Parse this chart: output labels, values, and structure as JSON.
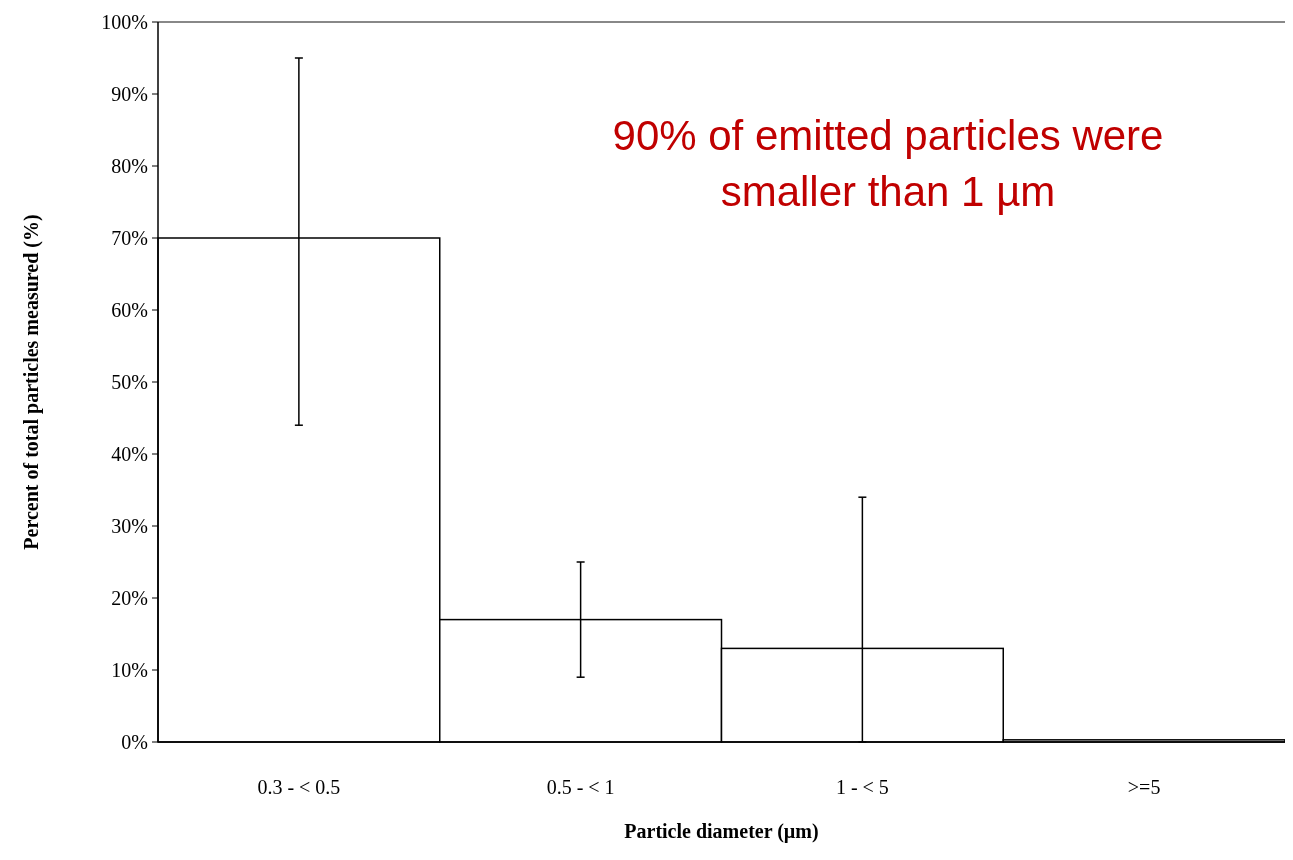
{
  "chart_data": {
    "type": "bar",
    "xlabel": "Particle diameter (µm)",
    "ylabel": "Percent of total particles measured (%)",
    "categories": [
      "0.3 - < 0.5",
      "0.5 - < 1",
      "1 - < 5",
      ">=5"
    ],
    "values": [
      70,
      17,
      13,
      0.3
    ],
    "errors": [
      [
        44,
        95
      ],
      [
        9,
        25
      ],
      [
        0,
        34
      ],
      null
    ],
    "color": "#ffffff",
    "ylim": [
      0,
      100
    ],
    "yticks": [
      {
        "value": 0,
        "label": "0%"
      },
      {
        "value": 10,
        "label": "10%"
      },
      {
        "value": 20,
        "label": "20%"
      },
      {
        "value": 30,
        "label": "30%"
      },
      {
        "value": 40,
        "label": "40%"
      },
      {
        "value": 50,
        "label": "50%"
      },
      {
        "value": 60,
        "label": "60%"
      },
      {
        "value": 70,
        "label": "70%"
      },
      {
        "value": 80,
        "label": "80%"
      },
      {
        "value": 90,
        "label": "90%"
      },
      {
        "value": 100,
        "label": "100%"
      }
    ],
    "grid": false,
    "annotations": [
      "90% of emitted particles were smaller than 1 µm"
    ]
  }
}
